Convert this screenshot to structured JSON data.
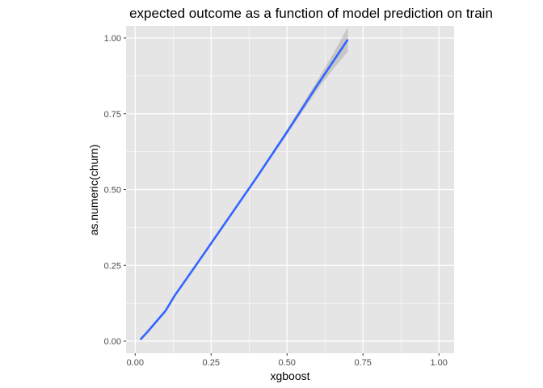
{
  "chart_data": {
    "type": "line",
    "title": "expected outcome as a function of model prediction on train",
    "xlabel": "xgboost",
    "ylabel": "as.numeric(churn)",
    "xlim": [
      -0.03,
      1.05
    ],
    "ylim": [
      -0.04,
      1.04
    ],
    "x_ticks": [
      0.0,
      0.25,
      0.5,
      0.75,
      1.0
    ],
    "x_tick_labels": [
      "0.00",
      "0.25",
      "0.50",
      "0.75",
      "1.00"
    ],
    "y_ticks": [
      0.0,
      0.25,
      0.5,
      0.75,
      1.0
    ],
    "y_tick_labels": [
      "0.00",
      "0.25",
      "0.50",
      "0.75",
      "1.00"
    ],
    "grid": true,
    "series": [
      {
        "color": "#3366ff",
        "x": [
          0.017,
          0.04,
          0.07,
          0.1,
          0.13,
          0.2,
          0.3,
          0.4,
          0.5,
          0.6,
          0.65,
          0.7
        ],
        "y": [
          0.005,
          0.03,
          0.065,
          0.1,
          0.15,
          0.25,
          0.395,
          0.54,
          0.69,
          0.845,
          0.92,
          0.995
        ],
        "ci_lower": [
          0.002,
          0.027,
          0.062,
          0.097,
          0.147,
          0.247,
          0.392,
          0.535,
          0.682,
          0.83,
          0.895,
          0.955
        ],
        "ci_upper": [
          0.008,
          0.033,
          0.068,
          0.103,
          0.153,
          0.253,
          0.398,
          0.545,
          0.698,
          0.86,
          0.945,
          1.035
        ]
      }
    ],
    "ci_fill": "#999999",
    "panel_background": "#e5e5e5",
    "grid_color": "#ffffff"
  }
}
